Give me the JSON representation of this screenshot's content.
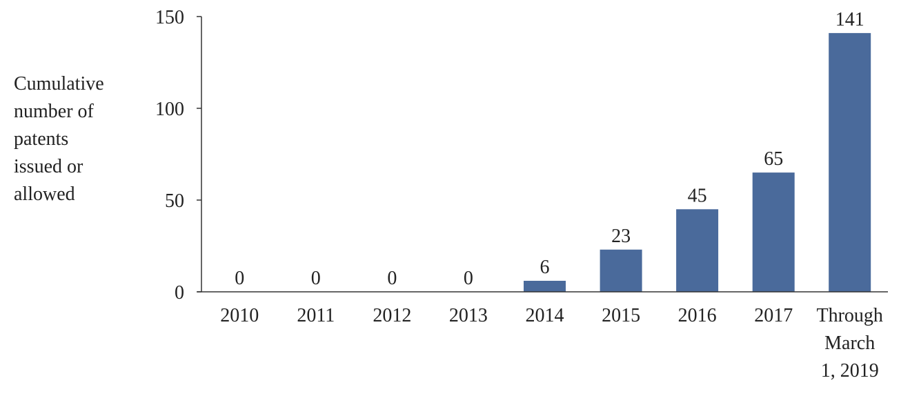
{
  "chart_data": {
    "type": "bar",
    "title": "",
    "ylabel_lines": [
      "Cumulative",
      "number of",
      "patents",
      "issued or",
      "allowed"
    ],
    "xlabel": "",
    "categories": [
      "2010",
      "2011",
      "2012",
      "2013",
      "2014",
      "2015",
      "2016",
      "2017",
      "Through March 1, 2019"
    ],
    "category_lines": [
      [
        "2010"
      ],
      [
        "2011"
      ],
      [
        "2012"
      ],
      [
        "2013"
      ],
      [
        "2014"
      ],
      [
        "2015"
      ],
      [
        "2016"
      ],
      [
        "2017"
      ],
      [
        "Through",
        "March",
        "1, 2019"
      ]
    ],
    "values": [
      0,
      0,
      0,
      0,
      6,
      23,
      45,
      65,
      141
    ],
    "data_labels": [
      "0",
      "0",
      "0",
      "0",
      "6",
      "23",
      "45",
      "65",
      "141"
    ],
    "ylim": [
      0,
      150
    ],
    "yticks": [
      0,
      50,
      100,
      150
    ],
    "ytick_labels": [
      "0",
      "50",
      "100",
      "150"
    ],
    "grid": false,
    "legend": "none",
    "bar_color": "#4a6a9b"
  }
}
